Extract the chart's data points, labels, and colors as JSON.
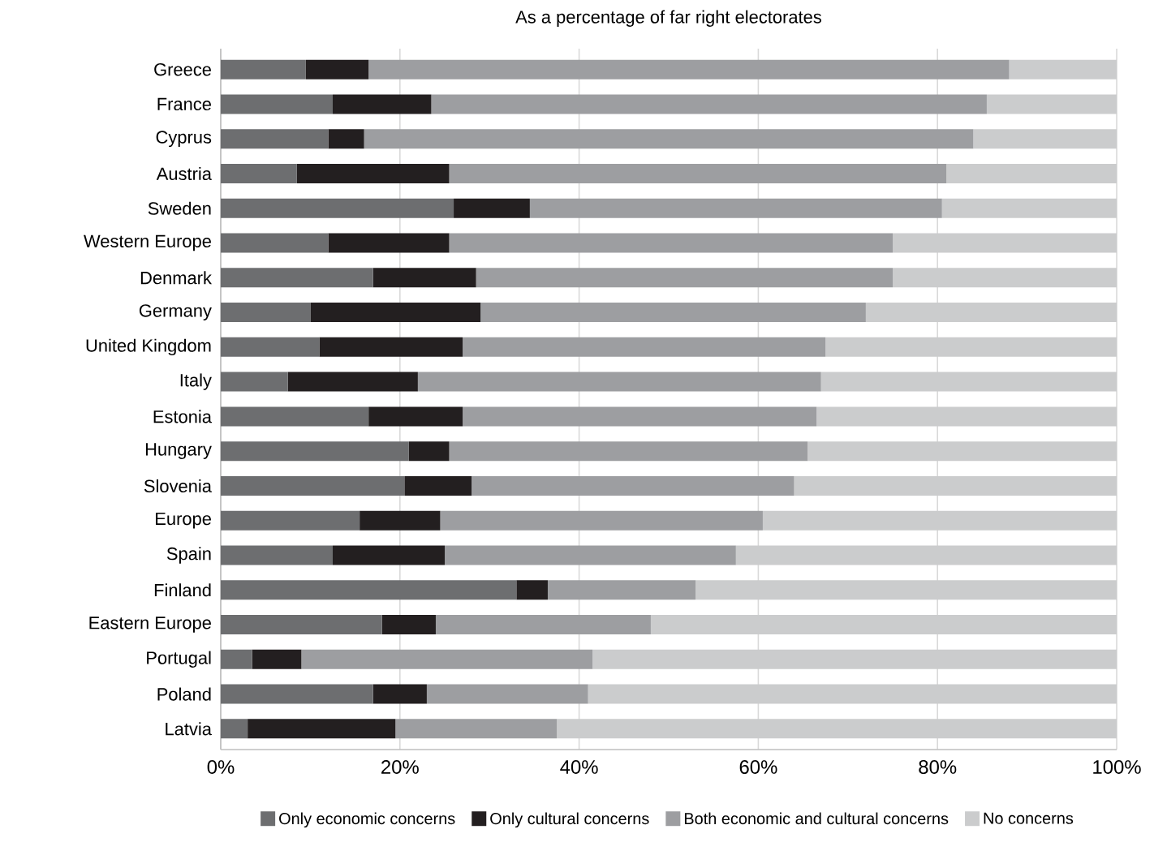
{
  "chart_data": {
    "type": "bar",
    "orientation": "horizontal",
    "stacked": true,
    "title": "As a percentage of far right electorates",
    "categories": [
      "Greece",
      "France",
      "Cyprus",
      "Austria",
      "Sweden",
      "Western Europe",
      "Denmark",
      "Germany",
      "United Kingdom",
      "Italy",
      "Estonia",
      "Hungary",
      "Slovenia",
      "Europe",
      "Spain",
      "Finland",
      "Eastern Europe",
      "Portugal",
      "Poland",
      "Latvia"
    ],
    "series": [
      {
        "name": "Only economic concerns",
        "color": "#6d6e70",
        "values": [
          9.5,
          12.5,
          12,
          8.5,
          26,
          12,
          17,
          10,
          11,
          7.5,
          16.5,
          21,
          20.5,
          15.5,
          12.5,
          33,
          18,
          3.5,
          17,
          3
        ]
      },
      {
        "name": "Only cultural concerns",
        "color": "#231f20",
        "values": [
          7,
          11,
          4,
          17,
          8.5,
          13.5,
          11.5,
          19,
          16,
          14.5,
          10.5,
          4.5,
          7.5,
          9,
          12.5,
          3.5,
          6,
          5.5,
          6,
          16.5
        ]
      },
      {
        "name": "Both economic and cultural concerns",
        "color": "#9d9ea1",
        "values": [
          71.5,
          62,
          68,
          55.5,
          46,
          49.5,
          46.5,
          43,
          40.5,
          45,
          39.5,
          40,
          36,
          36,
          32.5,
          16.5,
          24,
          32.5,
          18,
          18
        ]
      },
      {
        "name": "No concerns",
        "color": "#cbcccd",
        "values": [
          12,
          14.5,
          16,
          19,
          19.5,
          25,
          25,
          28,
          32.5,
          33,
          33.5,
          34.5,
          36,
          39.5,
          42.5,
          47,
          52,
          58.5,
          59,
          62.5
        ]
      }
    ],
    "xlim": [
      0,
      100
    ],
    "xticks": [
      {
        "value": 0,
        "label": "0%"
      },
      {
        "value": 20,
        "label": "20%"
      },
      {
        "value": 40,
        "label": "40%"
      },
      {
        "value": 60,
        "label": "60%"
      },
      {
        "value": 80,
        "label": "80%"
      },
      {
        "value": 100,
        "label": "100%"
      }
    ],
    "grid": "x",
    "legend": "bottom"
  }
}
